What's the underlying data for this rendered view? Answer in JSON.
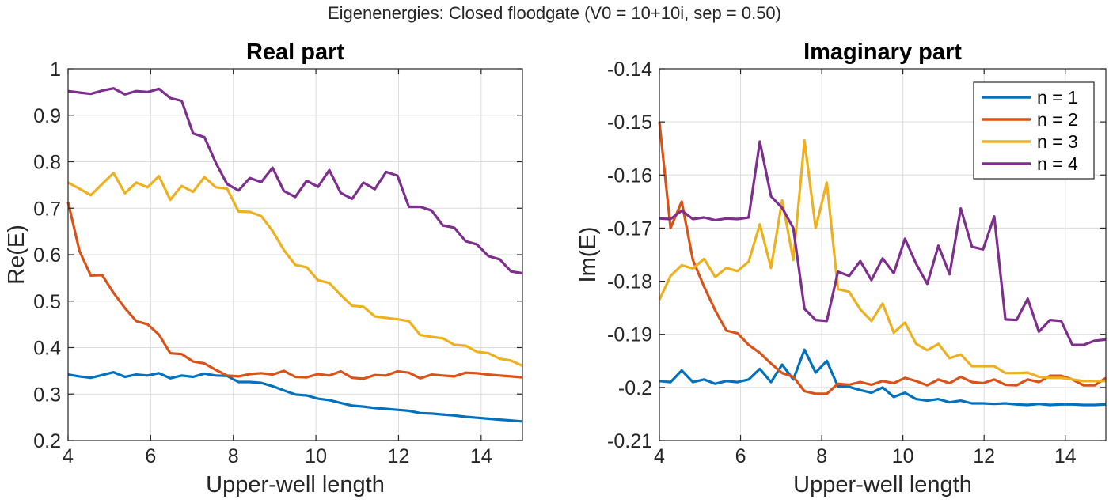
{
  "figure": {
    "suptitle": "Eigenenergies: Closed floodgate (V0 = 10+10i, sep = 0.50)"
  },
  "colors": {
    "n1": "#0072BD",
    "n2": "#D95319",
    "n3": "#EDB120",
    "n4": "#7E2F8E"
  },
  "chart_data": [
    {
      "type": "line",
      "title": "Real part",
      "xlabel": "Upper-well length",
      "ylabel": "Re(E)",
      "xlim": [
        4,
        15
      ],
      "ylim": [
        0.2,
        1.0
      ],
      "xticks": [
        4,
        6,
        8,
        10,
        12,
        14
      ],
      "yticks": [
        0.2,
        0.3,
        0.4,
        0.5,
        0.6,
        0.7,
        0.8,
        0.9,
        1.0
      ],
      "ytick_labels": [
        "0.2",
        "0.3",
        "0.4",
        "0.5",
        "0.6",
        "0.7",
        "0.8",
        "0.9",
        "1"
      ],
      "grid": true,
      "x": [
        4.0,
        4.275,
        4.55,
        4.825,
        5.1,
        5.375,
        5.65,
        5.925,
        6.2,
        6.475,
        6.75,
        7.025,
        7.3,
        7.575,
        7.85,
        8.125,
        8.4,
        8.675,
        8.95,
        9.225,
        9.5,
        9.775,
        10.05,
        10.325,
        10.6,
        10.875,
        11.15,
        11.425,
        11.7,
        11.975,
        12.25,
        12.525,
        12.8,
        13.075,
        13.35,
        13.625,
        13.9,
        14.175,
        14.45,
        14.725,
        15.0
      ],
      "series": [
        {
          "name": "n = 1",
          "color_key": "n1",
          "values": [
            0.342,
            0.338,
            0.335,
            0.341,
            0.347,
            0.337,
            0.342,
            0.34,
            0.345,
            0.334,
            0.34,
            0.337,
            0.344,
            0.34,
            0.339,
            0.326,
            0.326,
            0.324,
            0.317,
            0.308,
            0.299,
            0.297,
            0.29,
            0.287,
            0.281,
            0.275,
            0.273,
            0.27,
            0.268,
            0.266,
            0.264,
            0.259,
            0.258,
            0.256,
            0.254,
            0.251,
            0.249,
            0.247,
            0.245,
            0.243,
            0.241
          ]
        },
        {
          "name": "n = 2",
          "color_key": "n2",
          "values": [
            0.713,
            0.608,
            0.555,
            0.556,
            0.518,
            0.485,
            0.457,
            0.45,
            0.428,
            0.388,
            0.386,
            0.37,
            0.366,
            0.352,
            0.34,
            0.338,
            0.343,
            0.345,
            0.342,
            0.35,
            0.337,
            0.336,
            0.343,
            0.34,
            0.349,
            0.335,
            0.333,
            0.341,
            0.34,
            0.349,
            0.346,
            0.334,
            0.342,
            0.34,
            0.338,
            0.346,
            0.345,
            0.342,
            0.34,
            0.338,
            0.336
          ]
        },
        {
          "name": "n = 3",
          "color_key": "n3",
          "values": [
            0.755,
            0.742,
            0.728,
            0.752,
            0.776,
            0.732,
            0.755,
            0.745,
            0.769,
            0.718,
            0.748,
            0.735,
            0.767,
            0.745,
            0.742,
            0.693,
            0.692,
            0.683,
            0.651,
            0.61,
            0.578,
            0.573,
            0.545,
            0.539,
            0.513,
            0.49,
            0.488,
            0.467,
            0.464,
            0.461,
            0.457,
            0.427,
            0.423,
            0.42,
            0.406,
            0.404,
            0.391,
            0.388,
            0.376,
            0.372,
            0.361
          ]
        },
        {
          "name": "n = 4",
          "color_key": "n4",
          "values": [
            0.952,
            0.949,
            0.946,
            0.953,
            0.958,
            0.945,
            0.952,
            0.95,
            0.957,
            0.937,
            0.931,
            0.861,
            0.853,
            0.798,
            0.752,
            0.738,
            0.765,
            0.756,
            0.787,
            0.737,
            0.724,
            0.759,
            0.746,
            0.782,
            0.733,
            0.72,
            0.755,
            0.741,
            0.778,
            0.77,
            0.703,
            0.703,
            0.695,
            0.663,
            0.658,
            0.629,
            0.622,
            0.597,
            0.59,
            0.564,
            0.56
          ]
        }
      ]
    },
    {
      "type": "line",
      "title": "Imaginary part",
      "xlabel": "Upper-well length",
      "ylabel": "Im(E)",
      "xlim": [
        4,
        15
      ],
      "ylim": [
        -0.21,
        -0.14
      ],
      "xticks": [
        4,
        6,
        8,
        10,
        12,
        14
      ],
      "yticks": [
        -0.21,
        -0.2,
        -0.19,
        -0.18,
        -0.17,
        -0.16,
        -0.15,
        -0.14
      ],
      "ytick_labels": [
        "-0.21",
        "-0.2",
        "-0.19",
        "-0.18",
        "-0.17",
        "-0.16",
        "-0.15",
        "-0.14"
      ],
      "grid": true,
      "legend": {
        "position": "top-right",
        "entries": [
          "n = 1",
          "n = 2",
          "n = 3",
          "n = 4"
        ]
      },
      "x": [
        4.0,
        4.275,
        4.55,
        4.825,
        5.1,
        5.375,
        5.65,
        5.925,
        6.2,
        6.475,
        6.75,
        7.025,
        7.3,
        7.575,
        7.85,
        8.125,
        8.4,
        8.675,
        8.95,
        9.225,
        9.5,
        9.775,
        10.05,
        10.325,
        10.6,
        10.875,
        11.15,
        11.425,
        11.7,
        11.975,
        12.25,
        12.525,
        12.8,
        13.075,
        13.35,
        13.625,
        13.9,
        14.175,
        14.45,
        14.725,
        15.0
      ],
      "series": [
        {
          "name": "n = 1",
          "color_key": "n1",
          "values": [
            -0.1988,
            -0.199,
            -0.1968,
            -0.199,
            -0.1985,
            -0.1993,
            -0.1988,
            -0.199,
            -0.1985,
            -0.1965,
            -0.199,
            -0.1957,
            -0.1985,
            -0.1929,
            -0.1972,
            -0.195,
            -0.1998,
            -0.1999,
            -0.2005,
            -0.201,
            -0.2,
            -0.2018,
            -0.201,
            -0.2022,
            -0.2025,
            -0.2022,
            -0.2028,
            -0.2025,
            -0.203,
            -0.203,
            -0.2031,
            -0.203,
            -0.2032,
            -0.2033,
            -0.2031,
            -0.2033,
            -0.2032,
            -0.2032,
            -0.2033,
            -0.2033,
            -0.2032
          ]
        },
        {
          "name": "n = 2",
          "color_key": "n2",
          "values": [
            -0.15,
            -0.17,
            -0.165,
            -0.176,
            -0.181,
            -0.1855,
            -0.1893,
            -0.1898,
            -0.192,
            -0.1935,
            -0.1955,
            -0.1973,
            -0.198,
            -0.2007,
            -0.2012,
            -0.2012,
            -0.1993,
            -0.1995,
            -0.199,
            -0.1995,
            -0.1988,
            -0.1992,
            -0.1982,
            -0.1988,
            -0.1996,
            -0.1985,
            -0.1992,
            -0.198,
            -0.199,
            -0.1992,
            -0.1985,
            -0.1995,
            -0.1996,
            -0.1985,
            -0.199,
            -0.1978,
            -0.1978,
            -0.1985,
            -0.1996,
            -0.1996,
            -0.1982
          ]
        },
        {
          "name": "n = 3",
          "color_key": "n3",
          "values": [
            -0.1835,
            -0.179,
            -0.177,
            -0.1776,
            -0.1758,
            -0.1792,
            -0.1775,
            -0.1781,
            -0.1763,
            -0.1693,
            -0.1775,
            -0.1648,
            -0.176,
            -0.1535,
            -0.17,
            -0.1614,
            -0.1815,
            -0.182,
            -0.1853,
            -0.1875,
            -0.1842,
            -0.1897,
            -0.1878,
            -0.1918,
            -0.193,
            -0.1918,
            -0.1945,
            -0.1938,
            -0.196,
            -0.196,
            -0.196,
            -0.1973,
            -0.1973,
            -0.1972,
            -0.198,
            -0.1982,
            -0.1982,
            -0.1985,
            -0.1988,
            -0.1988,
            -0.1988
          ]
        },
        {
          "name": "n = 4",
          "color_key": "n4",
          "values": [
            -0.1682,
            -0.1683,
            -0.1667,
            -0.1683,
            -0.168,
            -0.1685,
            -0.1682,
            -0.1683,
            -0.168,
            -0.1537,
            -0.164,
            -0.1662,
            -0.17,
            -0.1852,
            -0.1873,
            -0.1875,
            -0.1782,
            -0.179,
            -0.1762,
            -0.1798,
            -0.1757,
            -0.1785,
            -0.172,
            -0.1767,
            -0.1805,
            -0.1733,
            -0.1787,
            -0.1663,
            -0.1735,
            -0.174,
            -0.1678,
            -0.1872,
            -0.1873,
            -0.1833,
            -0.1895,
            -0.1873,
            -0.1875,
            -0.192,
            -0.192,
            -0.1912,
            -0.191
          ]
        }
      ]
    }
  ]
}
